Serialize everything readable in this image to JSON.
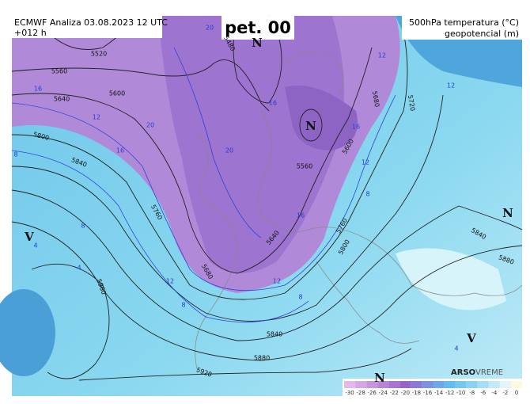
{
  "header": {
    "title": "ECMWF Analiza 03.08.2023 12 UTC",
    "lead": "+012 h",
    "day": "pet. 00",
    "field": "500hPa temperatura (°C)",
    "field2": "geopotencial (m)"
  },
  "pressure_centers": [
    "N",
    "N",
    "N",
    "N",
    "V",
    "V"
  ],
  "geopotential_labels": [
    "5520",
    "5560",
    "5640",
    "5600",
    "5800",
    "5840",
    "5760",
    "5680",
    "5640",
    "5560",
    "5480",
    "5680",
    "5720",
    "5600",
    "5760",
    "5800",
    "5840",
    "5880",
    "5960",
    "5840",
    "5880",
    "5920"
  ],
  "temperature_labels": [
    "20",
    "16",
    "12",
    "20",
    "16",
    "20",
    "16",
    "16",
    "12",
    "12",
    "12",
    "8",
    "16",
    "12",
    "8",
    "4",
    "4",
    "12",
    "8",
    "4",
    "8",
    "8"
  ],
  "legend": {
    "ticks": [
      -30,
      -28,
      -26,
      -24,
      -22,
      -20,
      -18,
      -16,
      -14,
      -12,
      -10,
      -8,
      -6,
      -4,
      -2,
      0
    ]
  },
  "brand": {
    "name": "ARSO",
    "product": "VREME"
  }
}
